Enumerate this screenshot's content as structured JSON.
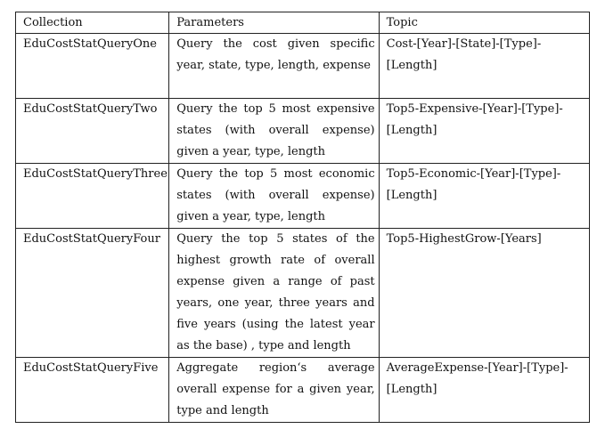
{
  "table": {
    "headers": {
      "collection": "Collection",
      "parameters": "Parameters",
      "topic": "Topic"
    },
    "rows": [
      {
        "collection": "EduCostStatQueryOne",
        "parameters": "Query the cost given specific year, state, type, length, expense",
        "topic": "Cost-[Year]-[State]-[Type]-[Length]"
      },
      {
        "collection": "EduCostStatQueryTwo",
        "parameters": "Query the top 5 most expensive states (with overall expense) given a year, type, length",
        "topic": "Top5-Expensive-[Year]-[Type]-[Length]"
      },
      {
        "collection": "EduCostStatQueryThree",
        "parameters": "Query the top 5 most economic states (with overall expense) given a year, type, length",
        "topic": "Top5-Economic-[Year]-[Type]-[Length]"
      },
      {
        "collection": "EduCostStatQueryFour",
        "parameters": "Query the top 5 states of the highest growth rate of overall expense given a range of past years, one year, three years and five years (using the latest year as the base) , type and length",
        "topic": "Top5-HighestGrow-[Years]"
      },
      {
        "collection": "EduCostStatQueryFive",
        "parameters": "Aggregate region‘s average overall expense for a given year, type and length",
        "topic": "AverageExpense-[Year]-[Type]-[Length]"
      }
    ]
  }
}
